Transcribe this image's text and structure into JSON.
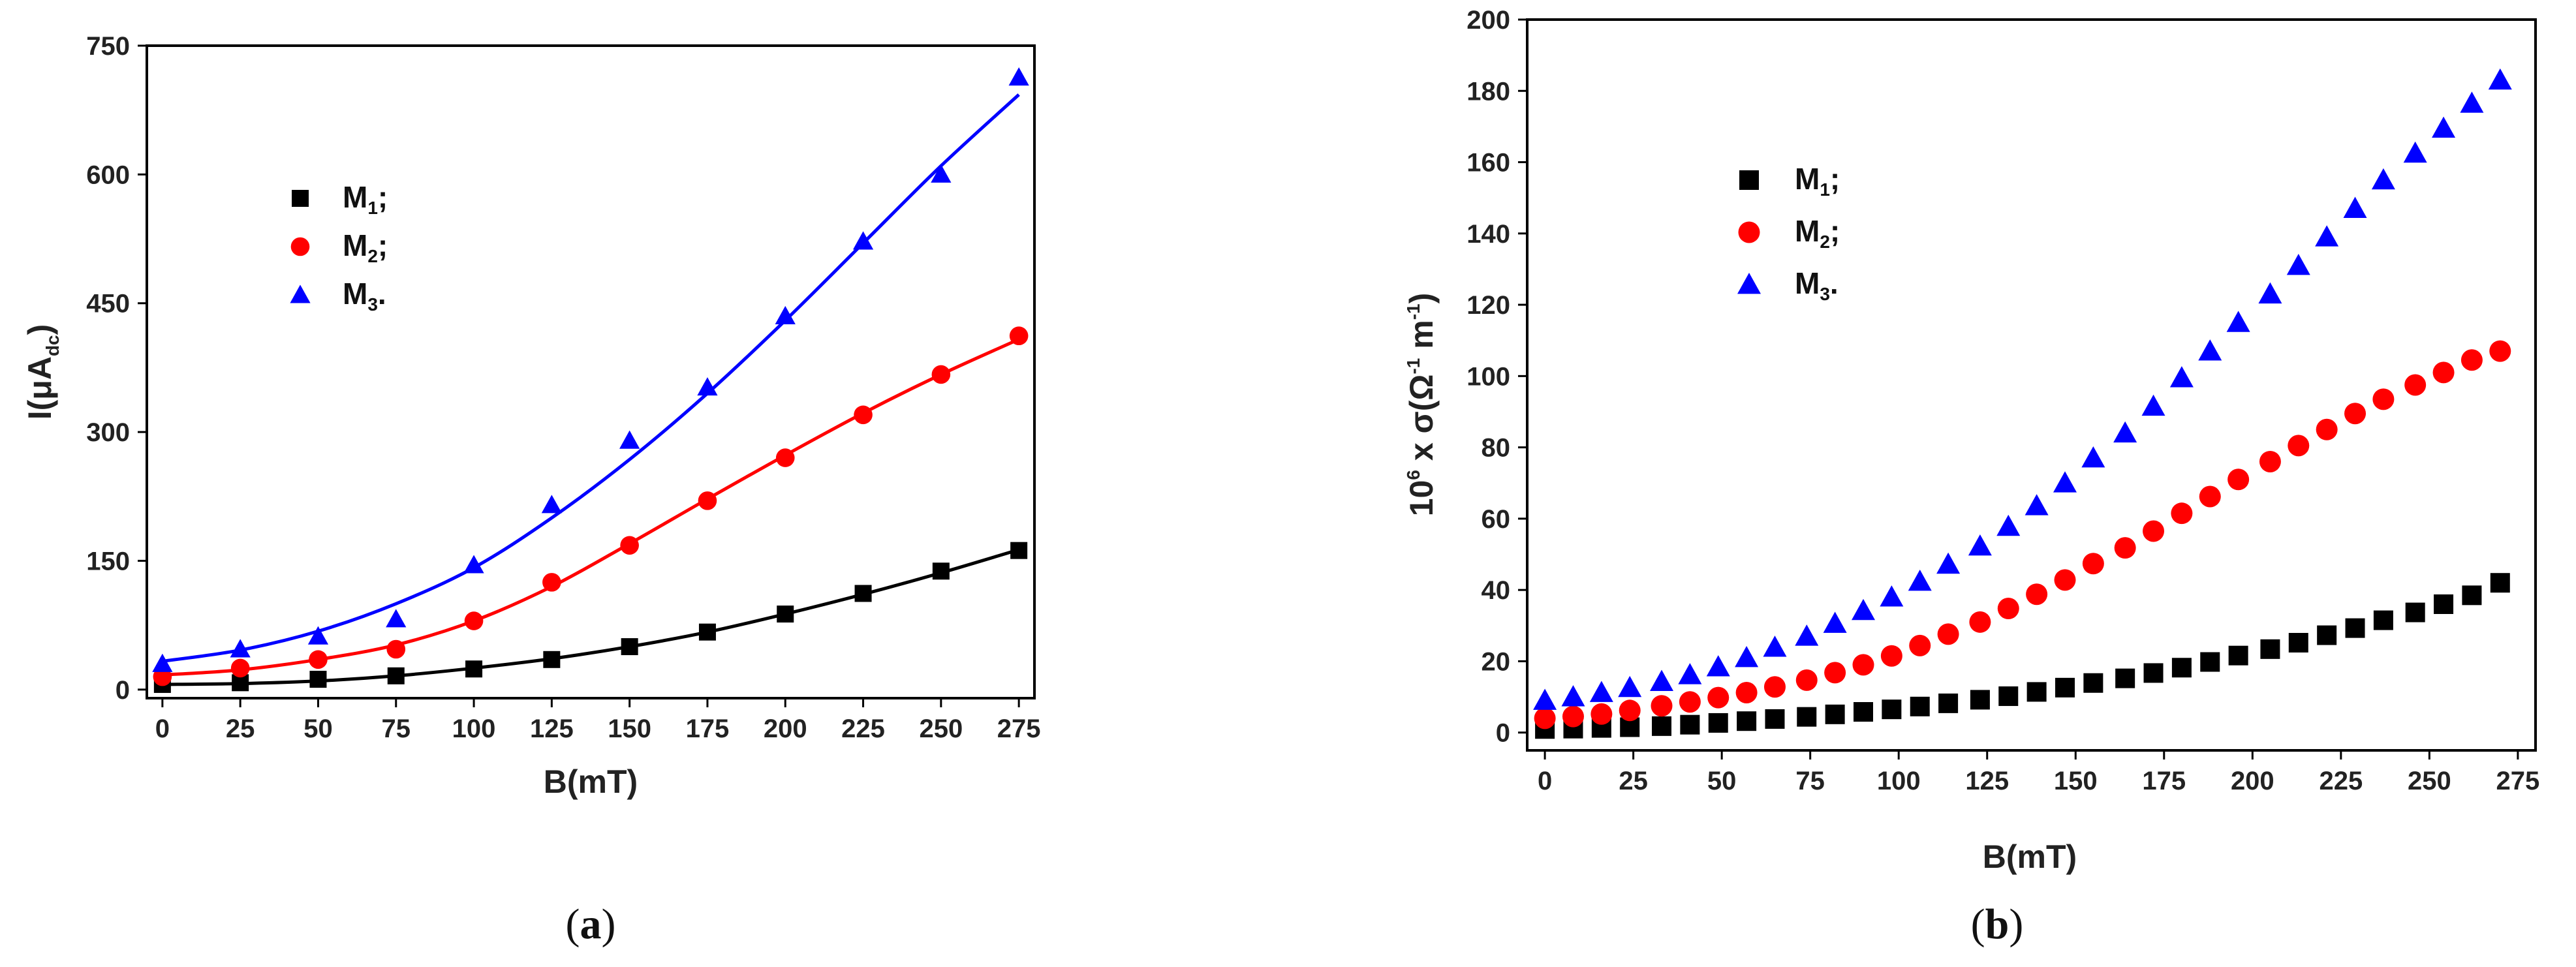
{
  "panels": [
    {
      "id": "a",
      "caption_letter": "a",
      "chart_data": {
        "type": "scatter",
        "ylabel_main": "I(",
        "ylabel_mu": "μ",
        "ylabel_A": "A",
        "ylabel_sub": "dc",
        "ylabel_end": ")",
        "xlabel": "B(mT)",
        "xlim": [
          -5,
          280
        ],
        "ylim": [
          -10,
          750
        ],
        "xticks": [
          0,
          25,
          50,
          75,
          100,
          125,
          150,
          175,
          200,
          225,
          250,
          275
        ],
        "yticks": [
          0,
          150,
          300,
          450,
          600,
          750
        ],
        "fit_lines": true,
        "series": [
          {
            "name": "M",
            "sub": "1",
            "suffix": ";",
            "color": "#000000",
            "marker": "square",
            "x": [
              0,
              25,
              50,
              75,
              100,
              125,
              150,
              175,
              200,
              225,
              250,
              275
            ],
            "y": [
              6,
              8,
              12,
              16,
              24,
              35,
              50,
              67,
              88,
              112,
              138,
              162
            ],
            "fit": [
              6,
              7,
              10,
              16,
              25,
              36,
              50,
              67,
              88,
              111,
              136,
              163
            ]
          },
          {
            "name": "M",
            "sub": "2",
            "suffix": ";",
            "color": "#ff0000",
            "marker": "circle",
            "x": [
              0,
              25,
              50,
              75,
              100,
              125,
              150,
              175,
              200,
              225,
              250,
              275
            ],
            "y": [
              15,
              25,
              35,
              47,
              80,
              125,
              168,
              220,
              270,
              320,
              367,
              412
            ],
            "fit": [
              17,
              23,
              35,
              52,
              80,
              120,
              170,
              222,
              273,
              322,
              367,
              408
            ]
          },
          {
            "name": "M",
            "sub": "3",
            "suffix": ".",
            "color": "#0000ff",
            "marker": "triangle",
            "x": [
              0,
              25,
              50,
              75,
              100,
              125,
              150,
              175,
              200,
              225,
              250,
              275
            ],
            "y": [
              30,
              47,
              62,
              82,
              145,
              215,
              290,
              352,
              435,
              522,
              600,
              713
            ],
            "fit": [
              33,
              46,
              68,
              100,
              142,
              200,
              268,
              345,
              430,
              520,
              610,
              693
            ]
          }
        ]
      }
    },
    {
      "id": "b",
      "caption_letter": "b",
      "chart_data": {
        "type": "scatter",
        "ylabel_pre": "10",
        "ylabel_sup6": "6",
        "ylabel_mid": " x σ(Ω",
        "ylabel_sup1": "-1",
        "ylabel_m": " m",
        "ylabel_sup2": "-1",
        "ylabel_end": ")",
        "xlabel": "B(mT)",
        "xlim": [
          -5,
          280
        ],
        "ylim": [
          -5,
          200
        ],
        "xticks": [
          0,
          25,
          50,
          75,
          100,
          125,
          150,
          175,
          200,
          225,
          250,
          275
        ],
        "yticks": [
          0,
          20,
          40,
          60,
          80,
          100,
          120,
          140,
          160,
          180,
          200
        ],
        "fit_lines": false,
        "series": [
          {
            "name": "M",
            "sub": "1",
            "suffix": ";",
            "color": "#000000",
            "marker": "square",
            "x": [
              0,
              8,
              16,
              24,
              33,
              41,
              49,
              57,
              65,
              74,
              82,
              90,
              98,
              106,
              114,
              123,
              131,
              139,
              147,
              155,
              164,
              172,
              180,
              188,
              196,
              205,
              213,
              221,
              229,
              237,
              246,
              254,
              262,
              270
            ],
            "y": [
              1.0,
              1.1,
              1.3,
              1.5,
              1.8,
              2.2,
              2.7,
              3.2,
              3.8,
              4.4,
              5.1,
              5.8,
              6.5,
              7.3,
              8.2,
              9.2,
              10.2,
              11.4,
              12.6,
              13.9,
              15.2,
              16.7,
              18.2,
              19.8,
              21.6,
              23.4,
              25.2,
              27.3,
              29.3,
              31.5,
              33.7,
              36.0,
              38.5,
              42.0
            ]
          },
          {
            "name": "M",
            "sub": "2",
            "suffix": ";",
            "color": "#ff0000",
            "marker": "circle",
            "x": [
              0,
              8,
              16,
              24,
              33,
              41,
              49,
              57,
              65,
              74,
              82,
              90,
              98,
              106,
              114,
              123,
              131,
              139,
              147,
              155,
              164,
              172,
              180,
              188,
              196,
              205,
              213,
              221,
              229,
              237,
              246,
              254,
              262,
              270
            ],
            "y": [
              4.0,
              4.5,
              5.2,
              6.2,
              7.5,
              8.6,
              9.8,
              11.2,
              12.8,
              14.7,
              16.8,
              19.0,
              21.5,
              24.4,
              27.6,
              31.0,
              34.8,
              38.8,
              42.8,
              47.4,
              51.8,
              56.5,
              61.5,
              66.2,
              71.0,
              76.0,
              80.5,
              85.0,
              89.5,
              93.5,
              97.5,
              101.0,
              104.5,
              107.0
            ]
          },
          {
            "name": "M",
            "sub": "3",
            "suffix": ".",
            "color": "#0000ff",
            "marker": "triangle",
            "x": [
              0,
              8,
              16,
              24,
              33,
              41,
              49,
              57,
              65,
              74,
              82,
              90,
              98,
              106,
              114,
              123,
              131,
              139,
              147,
              155,
              164,
              172,
              180,
              188,
              196,
              205,
              213,
              221,
              229,
              237,
              246,
              254,
              262,
              270
            ],
            "y": [
              9.0,
              10.0,
              11.2,
              12.6,
              14.3,
              16.2,
              18.4,
              21.0,
              23.9,
              27.0,
              30.6,
              34.2,
              38.0,
              42.4,
              47.2,
              52.3,
              57.8,
              63.6,
              70.0,
              77.0,
              84.0,
              91.5,
              99.5,
              107.0,
              115.0,
              123.0,
              131.0,
              139.0,
              147.0,
              155.0,
              162.5,
              169.5,
              176.5,
              183.0
            ]
          }
        ]
      }
    }
  ]
}
